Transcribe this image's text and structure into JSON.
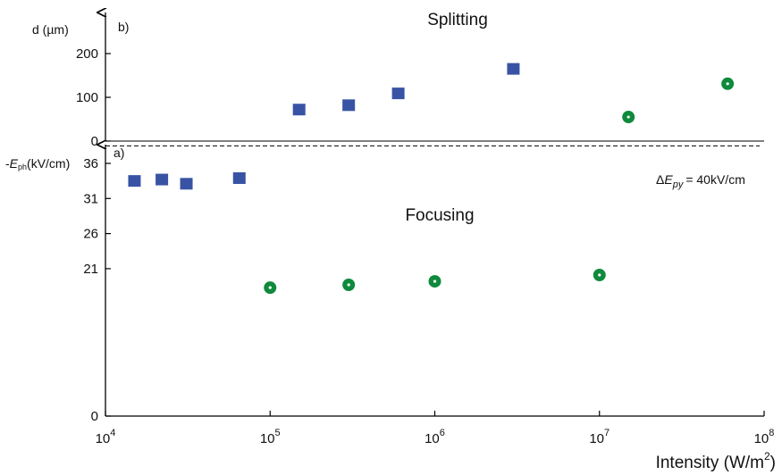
{
  "chart_data": {
    "type": "scatter",
    "xscale": "log",
    "xlim": [
      10000,
      100000000
    ],
    "xlabel": "Intensity (W/m",
    "xlabel_sup": "2",
    "xlabel_close": ")",
    "xticks": [
      {
        "value": 10000,
        "base": "10",
        "exp": "4"
      },
      {
        "value": 100000,
        "base": "10",
        "exp": "5"
      },
      {
        "value": 1000000,
        "base": "10",
        "exp": "6"
      },
      {
        "value": 10000000,
        "base": "10",
        "exp": "7"
      },
      {
        "value": 100000000,
        "base": "10",
        "exp": "8"
      }
    ],
    "top_panel": {
      "tag": "b)",
      "title": "Splitting",
      "ylabel": "d (µm)",
      "ylim": [
        0,
        260
      ],
      "yticks": [
        "0",
        "100",
        "200"
      ],
      "series": [
        {
          "marker": "square",
          "color": "#3953a4",
          "points": [
            [
              150000,
              72
            ],
            [
              300000,
              82
            ],
            [
              600000,
              109
            ],
            [
              3000000,
              165
            ]
          ]
        },
        {
          "marker": "circle",
          "color": "#0f8a3c",
          "points": [
            [
              15000000,
              55
            ],
            [
              60000000,
              131
            ]
          ]
        }
      ]
    },
    "bottom_panel": {
      "tag": "a)",
      "title": "Focusing",
      "ylabel_prefix": "-",
      "ylabel_var": "E",
      "ylabel_sub": "ph",
      "ylabel_unit": "(kV/cm)",
      "ylim": [
        0,
        40
      ],
      "ytick_values": [
        0,
        21,
        26,
        31,
        36
      ],
      "yticks": [
        "0",
        "21",
        "26",
        "31",
        "36"
      ],
      "reference_line": {
        "y": 38.5,
        "text_delta": "Δ",
        "text_var": "E",
        "text_sub": "py",
        "text_value": "= 40kV/cm"
      },
      "series": [
        {
          "marker": "square",
          "color": "#3953a4",
          "points": [
            [
              15000,
              33.5
            ],
            [
              22000,
              33.7
            ],
            [
              31000,
              33.1
            ],
            [
              65000,
              33.9
            ]
          ]
        },
        {
          "marker": "circle",
          "color": "#0f8a3c",
          "points": [
            [
              100000,
              18.3
            ],
            [
              300000,
              18.7
            ],
            [
              1000000,
              19.2
            ],
            [
              10000000,
              20.1
            ]
          ]
        }
      ]
    }
  }
}
